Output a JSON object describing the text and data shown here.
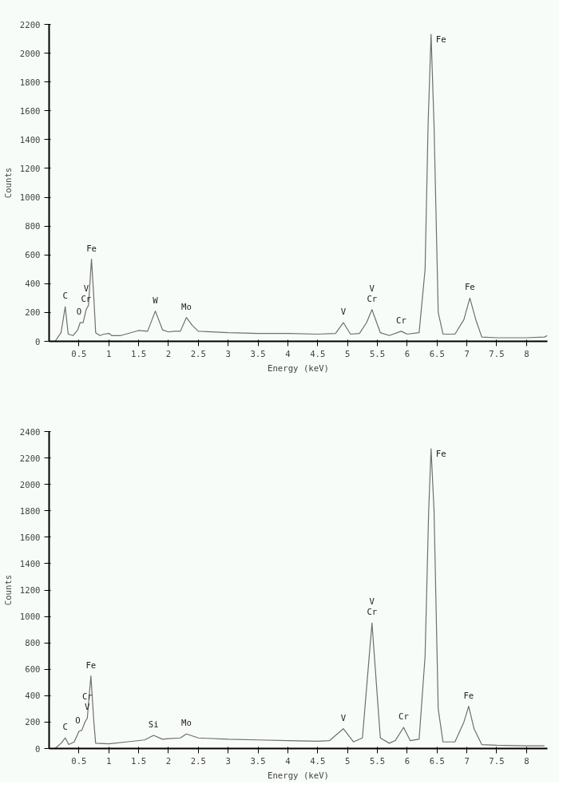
{
  "chart_data": [
    {
      "type": "line",
      "xlabel": "Energy (keV)",
      "ylabel": "Counts",
      "xlim": [
        0,
        8.35
      ],
      "ylim": [
        0,
        2200
      ],
      "xticks": [
        0.5,
        1,
        1.5,
        2,
        2.5,
        3,
        3.5,
        4,
        4.5,
        5,
        5.5,
        6,
        6.5,
        7,
        7.5,
        8
      ],
      "yticks": [
        0,
        200,
        400,
        600,
        800,
        1000,
        1200,
        1400,
        1600,
        1800,
        2000,
        2200
      ],
      "grid": false,
      "marker": "none",
      "line_style": "solid",
      "x": [
        0.1,
        0.2,
        0.27,
        0.32,
        0.4,
        0.48,
        0.52,
        0.57,
        0.62,
        0.66,
        0.71,
        0.75,
        0.78,
        0.85,
        0.92,
        1.0,
        1.05,
        1.2,
        1.5,
        1.65,
        1.78,
        1.9,
        2.0,
        2.1,
        2.2,
        2.3,
        2.4,
        2.5,
        3.0,
        3.5,
        4.0,
        4.5,
        4.8,
        4.93,
        5.05,
        5.2,
        5.32,
        5.41,
        5.55,
        5.7,
        5.9,
        6.0,
        6.2,
        6.3,
        6.35,
        6.4,
        6.45,
        6.52,
        6.6,
        6.8,
        6.95,
        7.05,
        7.15,
        7.25,
        7.5,
        8.0,
        8.3,
        8.35
      ],
      "series": [
        {
          "color": "#6e6e6e",
          "values": [
            0,
            60,
            240,
            50,
            40,
            80,
            130,
            130,
            220,
            250,
            570,
            300,
            60,
            40,
            50,
            55,
            40,
            40,
            75,
            70,
            210,
            80,
            65,
            70,
            70,
            165,
            110,
            70,
            60,
            55,
            55,
            50,
            55,
            130,
            50,
            55,
            130,
            220,
            60,
            40,
            70,
            50,
            60,
            500,
            1500,
            2130,
            1500,
            200,
            50,
            50,
            150,
            300,
            150,
            30,
            25,
            25,
            30,
            40
          ]
        }
      ],
      "annotations": [
        {
          "text": "C",
          "x": 0.27,
          "y": 240
        },
        {
          "text": "O",
          "x": 0.5,
          "y": 130
        },
        {
          "text": "Cr",
          "x": 0.62,
          "y": 220
        },
        {
          "text": "V",
          "x": 0.62,
          "y": 220
        },
        {
          "text": "Fe",
          "x": 0.71,
          "y": 570
        },
        {
          "text": "W",
          "x": 1.78,
          "y": 210
        },
        {
          "text": "Mo",
          "x": 2.3,
          "y": 165
        },
        {
          "text": "V",
          "x": 4.93,
          "y": 130
        },
        {
          "text": "Cr",
          "x": 5.41,
          "y": 220
        },
        {
          "text": "V",
          "x": 5.41,
          "y": 220
        },
        {
          "text": "Cr",
          "x": 5.9,
          "y": 70
        },
        {
          "text": "Fe",
          "x": 6.4,
          "y": 2130
        },
        {
          "text": "Fe",
          "x": 7.05,
          "y": 300
        }
      ]
    },
    {
      "type": "line",
      "xlabel": "Energy (keV)",
      "ylabel": "Counts",
      "xlim": [
        0,
        8.35
      ],
      "ylim": [
        0,
        2400
      ],
      "xticks": [
        0.5,
        1,
        1.5,
        2,
        2.5,
        3,
        3.5,
        4,
        4.5,
        5,
        5.5,
        6,
        6.5,
        7,
        7.5,
        8
      ],
      "yticks": [
        0,
        200,
        400,
        600,
        800,
        1000,
        1200,
        1400,
        1600,
        1800,
        2000,
        2200,
        2400
      ],
      "grid": false,
      "marker": "none",
      "line_style": "solid",
      "x": [
        0.1,
        0.2,
        0.27,
        0.33,
        0.42,
        0.5,
        0.55,
        0.6,
        0.64,
        0.7,
        0.75,
        0.78,
        1.0,
        1.3,
        1.6,
        1.75,
        1.9,
        2.0,
        2.2,
        2.3,
        2.5,
        3.0,
        3.5,
        4.0,
        4.5,
        4.7,
        4.93,
        5.1,
        5.25,
        5.41,
        5.55,
        5.7,
        5.8,
        5.94,
        6.05,
        6.2,
        6.3,
        6.36,
        6.4,
        6.45,
        6.52,
        6.6,
        6.8,
        6.95,
        7.03,
        7.12,
        7.25,
        7.5,
        8.0,
        8.3
      ],
      "series": [
        {
          "color": "#6e6e6e",
          "values": [
            0,
            40,
            80,
            30,
            50,
            130,
            140,
            200,
            230,
            550,
            200,
            40,
            35,
            50,
            65,
            100,
            70,
            75,
            80,
            110,
            80,
            70,
            65,
            60,
            55,
            60,
            150,
            50,
            80,
            950,
            80,
            40,
            60,
            160,
            60,
            70,
            700,
            1800,
            2270,
            1800,
            300,
            50,
            50,
            200,
            320,
            150,
            30,
            25,
            20,
            20
          ]
        }
      ],
      "annotations": [
        {
          "text": "C",
          "x": 0.27,
          "y": 80
        },
        {
          "text": "O",
          "x": 0.48,
          "y": 130
        },
        {
          "text": "V",
          "x": 0.64,
          "y": 230
        },
        {
          "text": "Cr",
          "x": 0.64,
          "y": 230
        },
        {
          "text": "Fe",
          "x": 0.7,
          "y": 550
        },
        {
          "text": "Si",
          "x": 1.75,
          "y": 100
        },
        {
          "text": "Mo",
          "x": 2.3,
          "y": 110
        },
        {
          "text": "V",
          "x": 4.93,
          "y": 150
        },
        {
          "text": "Cr",
          "x": 5.41,
          "y": 950
        },
        {
          "text": "V",
          "x": 5.41,
          "y": 950
        },
        {
          "text": "Cr",
          "x": 5.94,
          "y": 160
        },
        {
          "text": "Fe",
          "x": 6.4,
          "y": 2270
        },
        {
          "text": "Fe",
          "x": 7.03,
          "y": 320
        }
      ]
    }
  ]
}
